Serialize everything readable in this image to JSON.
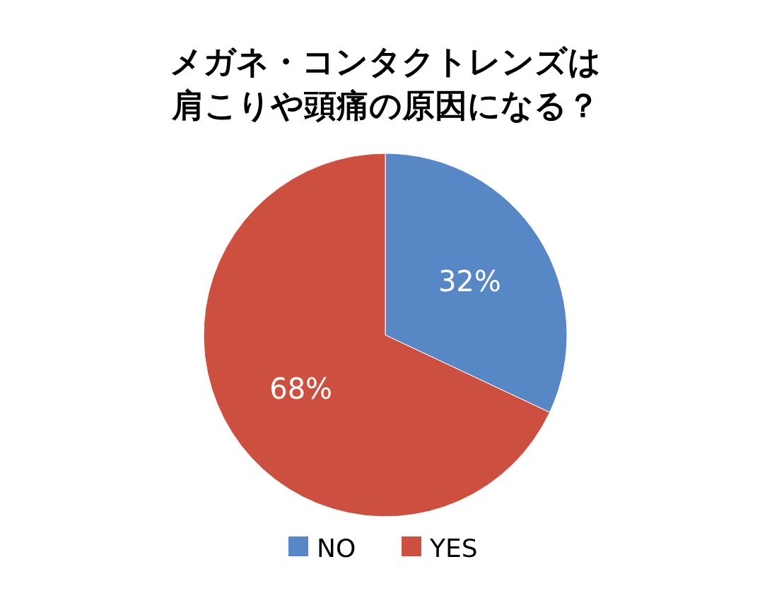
{
  "chart_data": {
    "type": "pie",
    "title": "メガネ・コンタクトレンズは肩こりや頭痛の原因になる？",
    "categories": [
      "NO",
      "YES"
    ],
    "values": [
      32,
      68
    ],
    "colors": [
      "#5887c5",
      "#cc4f3f"
    ],
    "value_labels": [
      "32%",
      "68%"
    ],
    "legend": "bottom"
  }
}
